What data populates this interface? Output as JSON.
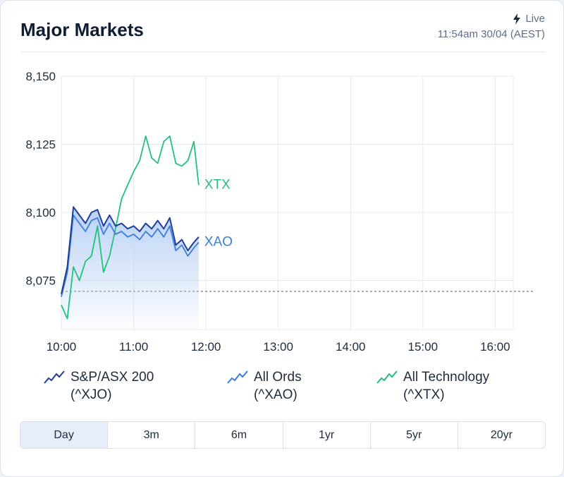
{
  "header": {
    "title": "Major Markets",
    "live_label": "Live",
    "timestamp": "11:54am 30/04 (AEST)"
  },
  "colors": {
    "xjo": "#1f3e9c",
    "xao": "#3b7ddc",
    "xtx": "#22c17c",
    "area_top": "#b6cff4",
    "grid": "#e6e9ee",
    "baseline": "#5f6b7a"
  },
  "chart_data": {
    "type": "line",
    "xlabels": [
      "10:00",
      "11:00",
      "12:00",
      "13:00",
      "14:00",
      "15:00",
      "16:00"
    ],
    "yticks": [
      "8,150",
      "8,125",
      "8,100",
      "8,075"
    ],
    "ylim": [
      8057,
      8150
    ],
    "xlim": [
      "10:00",
      "16:15"
    ],
    "grid": true,
    "reference_line": 8071,
    "series": [
      {
        "name": "XJO",
        "times": [
          "10:00",
          "10:05",
          "10:10",
          "10:15",
          "10:20",
          "10:25",
          "10:30",
          "10:35",
          "10:40",
          "10:45",
          "10:50",
          "10:55",
          "11:00",
          "11:05",
          "11:10",
          "11:15",
          "11:20",
          "11:25",
          "11:30",
          "11:35",
          "11:40",
          "11:45",
          "11:50",
          "11:54"
        ],
        "values": [
          8070,
          8080,
          8102,
          8099,
          8096,
          8100,
          8101,
          8095,
          8099,
          8095,
          8096,
          8094,
          8095,
          8093,
          8096,
          8094,
          8097,
          8094,
          8098,
          8088,
          8090,
          8086,
          8089,
          8091
        ]
      },
      {
        "name": "XAO",
        "label": "XAO",
        "times": [
          "10:00",
          "10:05",
          "10:10",
          "10:15",
          "10:20",
          "10:25",
          "10:30",
          "10:35",
          "10:40",
          "10:45",
          "10:50",
          "10:55",
          "11:00",
          "11:05",
          "11:10",
          "11:15",
          "11:20",
          "11:25",
          "11:30",
          "11:35",
          "11:40",
          "11:45",
          "11:50",
          "11:54"
        ],
        "values": [
          8069,
          8078,
          8099,
          8096,
          8093,
          8097,
          8098,
          8092,
          8096,
          8092,
          8093,
          8091,
          8092,
          8090,
          8093,
          8091,
          8094,
          8091,
          8095,
          8086,
          8088,
          8084,
          8087,
          8089
        ]
      },
      {
        "name": "XTX",
        "label": "XTX",
        "times": [
          "10:00",
          "10:05",
          "10:10",
          "10:15",
          "10:20",
          "10:25",
          "10:30",
          "10:35",
          "10:40",
          "10:45",
          "10:50",
          "10:55",
          "11:00",
          "11:05",
          "11:10",
          "11:15",
          "11:20",
          "11:25",
          "11:30",
          "11:35",
          "11:40",
          "11:45",
          "11:50",
          "11:54"
        ],
        "values": [
          8066,
          8061,
          8080,
          8075,
          8082,
          8084,
          8095,
          8078,
          8084,
          8094,
          8105,
          8110,
          8115,
          8119,
          8128,
          8120,
          8118,
          8126,
          8128,
          8118,
          8117,
          8119,
          8126,
          8110
        ]
      }
    ]
  },
  "legend": [
    {
      "line1": "S&P/ASX 200",
      "line2": "(^XJO)",
      "color": "#1f3e9c"
    },
    {
      "line1": "All Ords",
      "line2": "(^XAO)",
      "color": "#3b7ddc"
    },
    {
      "line1": "All Technology",
      "line2": "(^XTX)",
      "color": "#22c17c"
    }
  ],
  "tabs": [
    {
      "label": "Day",
      "active": true
    },
    {
      "label": "3m",
      "active": false
    },
    {
      "label": "6m",
      "active": false
    },
    {
      "label": "1yr",
      "active": false
    },
    {
      "label": "5yr",
      "active": false
    },
    {
      "label": "20yr",
      "active": false
    }
  ]
}
